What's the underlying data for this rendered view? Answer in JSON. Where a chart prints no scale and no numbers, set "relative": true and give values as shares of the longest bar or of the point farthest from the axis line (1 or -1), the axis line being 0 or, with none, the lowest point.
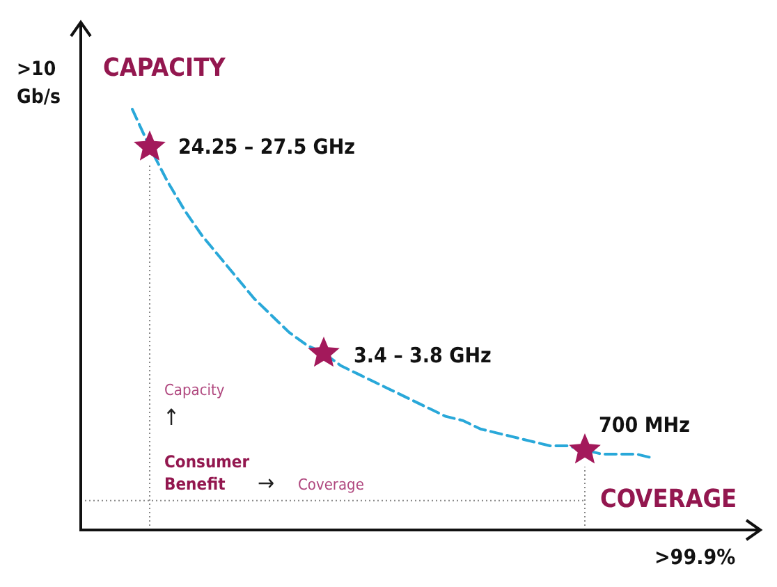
{
  "chart_data": {
    "type": "line",
    "relative": true,
    "xlabel": ">99.9%",
    "ylabel": ">10 Gb/s",
    "categories": [
      null,
      null,
      null,
      null,
      null,
      null,
      null,
      null,
      null,
      null,
      null,
      null,
      null,
      null,
      null,
      null,
      null,
      null,
      null,
      null,
      null,
      null,
      null,
      null,
      null,
      null,
      null,
      null,
      null,
      null,
      null
    ],
    "series": [
      {
        "color": "#29a8d9",
        "line_style": "dashed",
        "values": [
          1.0,
          0.91,
          0.83,
          0.76,
          0.7,
          0.65,
          0.6,
          0.55,
          0.51,
          0.47,
          0.44,
          0.42,
          0.39,
          0.37,
          0.35,
          0.33,
          0.31,
          0.29,
          0.27,
          0.26,
          0.24,
          0.23,
          0.22,
          0.21,
          0.2,
          0.2,
          0.19,
          0.18,
          0.18,
          0.18,
          0.17
        ]
      }
    ],
    "ref_lines": [
      {
        "axis": "y",
        "value": 0.07,
        "color": "#888888",
        "line_style": "dotted"
      }
    ],
    "annotations": [
      "CAPACITY",
      "COVERAGE",
      "24.25 – 27.5 GHz",
      "3.4 – 3.8 GHz",
      "700 MHz",
      "Capacity",
      "↑",
      "Consumer Benefit",
      "→",
      "Coverage"
    ]
  }
}
